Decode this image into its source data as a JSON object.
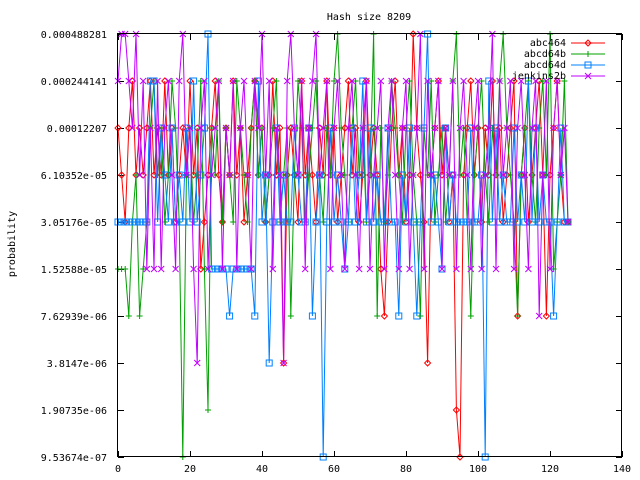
{
  "chart_data": {
    "type": "line",
    "title": "Hash size 8209",
    "xlabel": "",
    "ylabel": "probability",
    "xlim": [
      0,
      140
    ],
    "ylim": [
      9.53674e-07,
      0.000488281
    ],
    "yscale": "log2",
    "grid": false,
    "legend_position": "top-right",
    "x_ticks": [
      "0",
      "20",
      "40",
      "60",
      "80",
      "100",
      "120",
      "140"
    ],
    "y_ticks": [
      "9.53674e-07",
      "1.90735e-06",
      "3.8147e-06",
      "7.62939e-06",
      "1.52588e-05",
      "3.05176e-05",
      "6.10352e-05",
      "0.00012207",
      "0.000244141",
      "0.000488281"
    ],
    "x": [
      0,
      1,
      2,
      3,
      4,
      5,
      6,
      7,
      8,
      9,
      10,
      11,
      12,
      13,
      14,
      15,
      16,
      17,
      18,
      19,
      20,
      21,
      22,
      23,
      24,
      25,
      26,
      27,
      28,
      29,
      30,
      31,
      32,
      33,
      34,
      35,
      36,
      37,
      38,
      39,
      40,
      41,
      42,
      43,
      44,
      45,
      46,
      47,
      48,
      49,
      50,
      51,
      52,
      53,
      54,
      55,
      56,
      57,
      58,
      59,
      60,
      61,
      62,
      63,
      64,
      65,
      66,
      67,
      68,
      69,
      70,
      71,
      72,
      73,
      74,
      75,
      76,
      77,
      78,
      79,
      80,
      81,
      82,
      83,
      84,
      85,
      86,
      87,
      88,
      89,
      90,
      91,
      92,
      93,
      94,
      95,
      96,
      97,
      98,
      99,
      100,
      101,
      102,
      103,
      104,
      105,
      106,
      107,
      108,
      109,
      110,
      111,
      112,
      113,
      114,
      115,
      116,
      117,
      118,
      119,
      120,
      121,
      122,
      123,
      124,
      125
    ],
    "series": [
      {
        "name": "abc464",
        "color": "#ff0000",
        "marker": "diamond",
        "values": [
          0.00012207,
          6.10352e-05,
          3.05176e-05,
          0.00012207,
          0.000244141,
          6.10352e-05,
          0.00012207,
          6.10352e-05,
          0.00012207,
          0.000244141,
          6.10352e-05,
          0.00012207,
          6.10352e-05,
          0.000244141,
          6.10352e-05,
          0.00012207,
          3.05176e-05,
          6.10352e-05,
          0.00012207,
          6.10352e-05,
          0.000244141,
          6.10352e-05,
          0.00012207,
          1.52588e-05,
          3.05176e-05,
          6.10352e-05,
          0.00012207,
          0.000244141,
          6.10352e-05,
          3.05176e-05,
          0.00012207,
          6.10352e-05,
          0.000244141,
          6.10352e-05,
          0.00012207,
          3.05176e-05,
          6.10352e-05,
          0.00012207,
          0.000244141,
          6.10352e-05,
          0.00012207,
          3.05176e-05,
          6.10352e-05,
          0.000244141,
          6.10352e-05,
          0.00012207,
          3.8147e-06,
          6.10352e-05,
          0.00012207,
          6.10352e-05,
          3.05176e-05,
          0.000244141,
          6.10352e-05,
          0.00012207,
          6.10352e-05,
          3.05176e-05,
          0.00012207,
          6.10352e-05,
          0.000244141,
          6.10352e-05,
          0.00012207,
          3.05176e-05,
          6.10352e-05,
          0.00012207,
          0.000244141,
          6.10352e-05,
          0.00012207,
          3.05176e-05,
          6.10352e-05,
          0.000244141,
          6.10352e-05,
          0.00012207,
          6.10352e-05,
          1.52588e-05,
          7.62939e-06,
          3.05176e-05,
          0.00012207,
          0.000244141,
          6.10352e-05,
          0.00012207,
          3.05176e-05,
          6.10352e-05,
          0.000488281,
          0.00012207,
          6.10352e-05,
          3.05176e-05,
          3.8147e-06,
          6.10352e-05,
          0.00012207,
          0.000244141,
          6.10352e-05,
          0.00012207,
          3.05176e-05,
          6.10352e-05,
          1.90735e-06,
          9.53674e-07,
          6.10352e-05,
          0.00012207,
          0.000244141,
          6.10352e-05,
          0.00012207,
          3.05176e-05,
          0.00012207,
          6.10352e-05,
          0.000244141,
          6.10352e-05,
          0.00012207,
          3.05176e-05,
          6.10352e-05,
          0.00012207,
          0.000244141,
          7.62939e-06,
          6.10352e-05,
          0.00012207,
          3.05176e-05,
          6.10352e-05,
          0.00012207,
          0.000244141,
          6.10352e-05,
          7.62939e-06,
          6.10352e-05,
          0.00012207,
          0.000244141,
          6.10352e-05,
          3.05176e-05,
          3.05176e-05
        ]
      },
      {
        "name": "abcd64b",
        "color": "#00a000",
        "marker": "plus",
        "values": [
          1.52588e-05,
          1.52588e-05,
          1.52588e-05,
          7.62939e-06,
          3.05176e-05,
          6.10352e-05,
          7.62939e-06,
          1.52588e-05,
          3.05176e-05,
          0.00012207,
          0.000244141,
          6.10352e-05,
          0.00012207,
          3.05176e-05,
          6.10352e-05,
          0.000244141,
          0.00012207,
          3.05176e-05,
          9.53674e-07,
          6.10352e-05,
          0.00012207,
          3.05176e-05,
          6.10352e-05,
          0.000244141,
          1.52588e-05,
          1.90735e-06,
          0.00012207,
          6.10352e-05,
          0.000244141,
          3.05176e-05,
          0.00012207,
          6.10352e-05,
          3.05176e-05,
          0.000244141,
          0.00012207,
          6.10352e-05,
          3.05176e-05,
          0.00012207,
          0.000244141,
          6.10352e-05,
          0.00012207,
          3.05176e-05,
          6.10352e-05,
          0.00012207,
          0.000244141,
          3.05176e-05,
          6.10352e-05,
          0.00012207,
          7.62939e-06,
          6.10352e-05,
          0.000244141,
          0.00012207,
          3.05176e-05,
          6.10352e-05,
          0.00012207,
          0.000244141,
          6.10352e-05,
          3.05176e-05,
          0.00012207,
          6.10352e-05,
          0.000244141,
          0.000488281,
          0.00012207,
          6.10352e-05,
          3.05176e-05,
          0.00012207,
          0.000244141,
          6.10352e-05,
          0.00012207,
          3.05176e-05,
          6.10352e-05,
          0.000488281,
          7.62939e-06,
          0.00012207,
          3.05176e-05,
          6.10352e-05,
          0.000244141,
          0.00012207,
          6.10352e-05,
          3.05176e-05,
          0.00012207,
          0.000244141,
          6.10352e-05,
          3.05176e-05,
          7.62939e-06,
          0.00012207,
          6.10352e-05,
          0.000244141,
          3.05176e-05,
          6.10352e-05,
          0.00012207,
          3.05176e-05,
          6.10352e-05,
          0.000244141,
          0.000488281,
          6.10352e-05,
          0.00012207,
          3.05176e-05,
          7.62939e-06,
          6.10352e-05,
          0.00012207,
          0.000244141,
          6.10352e-05,
          3.05176e-05,
          0.00012207,
          6.10352e-05,
          0.000244141,
          0.000488281,
          0.00012207,
          6.10352e-05,
          3.05176e-05,
          7.62939e-06,
          6.10352e-05,
          0.00012207,
          0.000244141,
          6.10352e-05,
          3.05176e-05,
          0.00012207,
          0.000244141,
          6.10352e-05,
          0.000488281,
          1.52588e-05,
          3.05176e-05,
          6.10352e-05,
          0.000244141,
          3.05176e-05
        ]
      },
      {
        "name": "abcd64d",
        "color": "#0080ff",
        "marker": "square",
        "values": [
          3.05176e-05,
          3.05176e-05,
          3.05176e-05,
          3.05176e-05,
          3.05176e-05,
          3.05176e-05,
          3.05176e-05,
          3.05176e-05,
          3.05176e-05,
          0.000244141,
          0.000244141,
          3.05176e-05,
          0.00012207,
          6.10352e-05,
          3.05176e-05,
          0.00012207,
          3.05176e-05,
          6.10352e-05,
          3.05176e-05,
          0.00012207,
          3.05176e-05,
          0.000244141,
          3.05176e-05,
          6.10352e-05,
          0.00012207,
          0.000488281,
          1.52588e-05,
          1.52588e-05,
          1.52588e-05,
          1.52588e-05,
          1.52588e-05,
          7.62939e-06,
          1.52588e-05,
          1.52588e-05,
          1.52588e-05,
          1.52588e-05,
          1.52588e-05,
          1.52588e-05,
          7.62939e-06,
          0.000244141,
          3.05176e-05,
          6.10352e-05,
          3.8147e-06,
          3.05176e-05,
          0.00012207,
          3.05176e-05,
          6.10352e-05,
          3.05176e-05,
          3.05176e-05,
          0.00012207,
          6.10352e-05,
          3.05176e-05,
          3.05176e-05,
          0.00012207,
          7.62939e-06,
          3.05176e-05,
          6.10352e-05,
          9.53674e-07,
          3.05176e-05,
          0.00012207,
          3.05176e-05,
          6.10352e-05,
          3.05176e-05,
          1.52588e-05,
          3.05176e-05,
          0.00012207,
          3.05176e-05,
          6.10352e-05,
          0.000244141,
          3.05176e-05,
          0.00012207,
          3.05176e-05,
          6.10352e-05,
          3.05176e-05,
          3.05176e-05,
          0.00012207,
          3.05176e-05,
          3.05176e-05,
          7.62939e-06,
          6.10352e-05,
          3.05176e-05,
          0.00012207,
          3.05176e-05,
          7.62939e-06,
          3.05176e-05,
          0.00012207,
          0.000488281,
          3.05176e-05,
          6.10352e-05,
          3.05176e-05,
          1.52588e-05,
          0.00012207,
          3.05176e-05,
          6.10352e-05,
          3.05176e-05,
          3.05176e-05,
          3.05176e-05,
          3.05176e-05,
          0.00012207,
          3.05176e-05,
          3.05176e-05,
          6.10352e-05,
          9.53674e-07,
          0.000244141,
          3.05176e-05,
          0.00012207,
          3.05176e-05,
          6.10352e-05,
          3.05176e-05,
          3.05176e-05,
          0.00012207,
          3.05176e-05,
          6.10352e-05,
          3.05176e-05,
          0.000244141,
          3.05176e-05,
          0.00012207,
          3.05176e-05,
          6.10352e-05,
          3.05176e-05,
          3.05176e-05,
          7.62939e-06,
          3.05176e-05,
          0.00012207,
          3.05176e-05,
          3.05176e-05
        ]
      },
      {
        "name": "jenkins2b",
        "color": "#c000ff",
        "marker": "cross",
        "values": [
          0.000244141,
          0.000488281,
          0.000488281,
          0.000244141,
          0.00012207,
          0.000488281,
          6.10352e-05,
          0.000244141,
          1.52588e-05,
          0.00012207,
          1.52588e-05,
          0.000244141,
          1.52588e-05,
          0.00012207,
          0.000244141,
          6.10352e-05,
          1.52588e-05,
          0.000244141,
          0.000488281,
          6.10352e-05,
          0.00012207,
          1.52588e-05,
          3.8147e-06,
          0.00012207,
          0.000244141,
          1.52588e-05,
          6.10352e-05,
          0.00012207,
          0.000244141,
          1.52588e-05,
          0.00012207,
          6.10352e-05,
          0.000244141,
          1.52588e-05,
          0.00012207,
          0.000244141,
          6.10352e-05,
          1.52588e-05,
          0.000244141,
          0.00012207,
          0.000488281,
          6.10352e-05,
          0.000244141,
          1.52588e-05,
          0.00012207,
          6.10352e-05,
          3.8147e-06,
          0.000244141,
          0.000488281,
          0.00012207,
          6.10352e-05,
          0.000244141,
          1.52588e-05,
          0.00012207,
          0.000244141,
          0.000488281,
          6.10352e-05,
          0.00012207,
          0.000244141,
          1.52588e-05,
          0.00012207,
          0.000244141,
          6.10352e-05,
          1.52588e-05,
          0.00012207,
          0.000244141,
          6.10352e-05,
          1.52588e-05,
          0.00012207,
          0.000244141,
          1.52588e-05,
          6.10352e-05,
          0.00012207,
          0.000244141,
          1.52588e-05,
          0.00012207,
          0.000244141,
          6.10352e-05,
          1.52588e-05,
          0.00012207,
          0.000244141,
          1.52588e-05,
          6.10352e-05,
          0.00012207,
          0.000488281,
          1.52588e-05,
          0.000244141,
          6.10352e-05,
          0.00012207,
          0.000244141,
          1.52588e-05,
          0.00012207,
          6.10352e-05,
          0.000244141,
          1.52588e-05,
          0.00012207,
          0.000244141,
          6.10352e-05,
          1.52588e-05,
          0.00012207,
          0.000244141,
          1.52588e-05,
          6.10352e-05,
          0.00012207,
          0.000488281,
          1.52588e-05,
          0.000244141,
          6.10352e-05,
          0.00012207,
          0.000244141,
          1.52588e-05,
          0.00012207,
          0.000244141,
          6.10352e-05,
          1.52588e-05,
          0.00012207,
          0.000244141,
          7.62939e-06,
          6.10352e-05,
          0.000244141,
          1.52588e-05,
          0.00012207,
          0.000244141,
          6.10352e-05,
          0.00012207,
          3.05176e-05
        ]
      }
    ]
  }
}
